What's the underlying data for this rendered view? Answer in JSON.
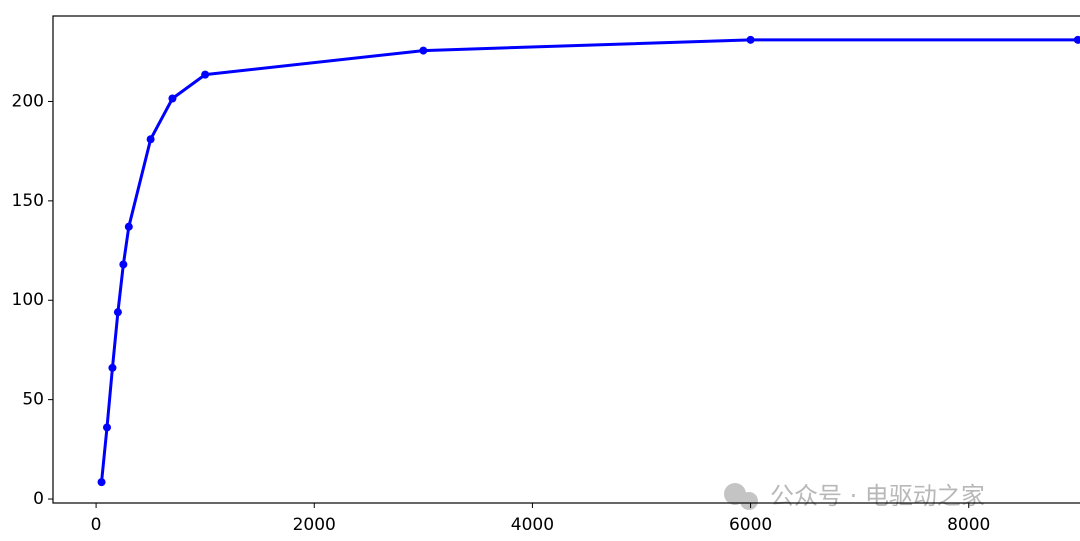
{
  "chart_data": {
    "type": "line",
    "x": [
      50,
      100,
      150,
      200,
      250,
      300,
      500,
      700,
      1000,
      3000,
      6000,
      9000
    ],
    "series": [
      {
        "color": "#0000ff",
        "values": [
          8.5,
          36,
          66,
          94,
          118,
          137,
          181,
          201.5,
          213.5,
          225.6,
          231,
          231
        ]
      }
    ],
    "xlim": [
      -395,
      9020
    ],
    "ylim": [
      -2,
      243
    ],
    "xticks": [
      0,
      2000,
      4000,
      6000,
      8000
    ],
    "yticks": [
      0,
      50,
      100,
      150,
      200
    ],
    "watermark": "公众号 · 电驱动之家"
  }
}
